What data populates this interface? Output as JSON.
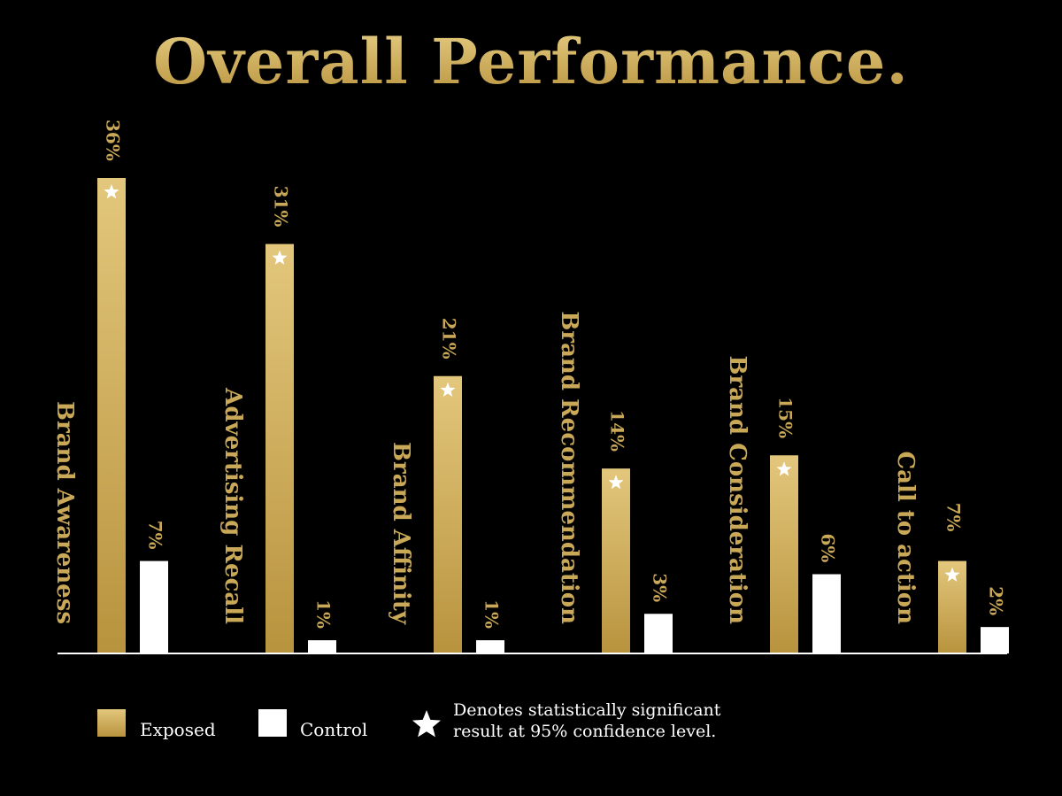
{
  "title": "Overall Performance.",
  "colors": {
    "exposed_top": "#e3c77c",
    "exposed_bottom": "#b8933e",
    "control": "#ffffff",
    "label_gold": "#c9a857",
    "background": "#000000"
  },
  "chart_data": {
    "type": "bar",
    "categories": [
      "Brand Awareness",
      "Advertising Recall",
      "Brand Affinity",
      "Brand Recommendation",
      "Brand Consideration",
      "Call to action"
    ],
    "series": [
      {
        "name": "Exposed",
        "values": [
          36,
          31,
          21,
          14,
          15,
          7
        ],
        "value_labels": [
          "36%",
          "31%",
          "21%",
          "14%",
          "15%",
          "7%"
        ],
        "significant": [
          true,
          true,
          true,
          true,
          true,
          true
        ]
      },
      {
        "name": "Control",
        "values": [
          7,
          1,
          1,
          3,
          6,
          2
        ],
        "value_labels": [
          "7%",
          "1%",
          "1%",
          "3%",
          "6%",
          "2%"
        ]
      }
    ],
    "legend_position": "bottom-left",
    "grid": false
  },
  "legend": {
    "exposed_label": "Exposed",
    "control_label": "Control",
    "note_line1": "Denotes statistically significant",
    "note_line2": "result at 95% confidence level.",
    "note_icon": "star-icon"
  }
}
